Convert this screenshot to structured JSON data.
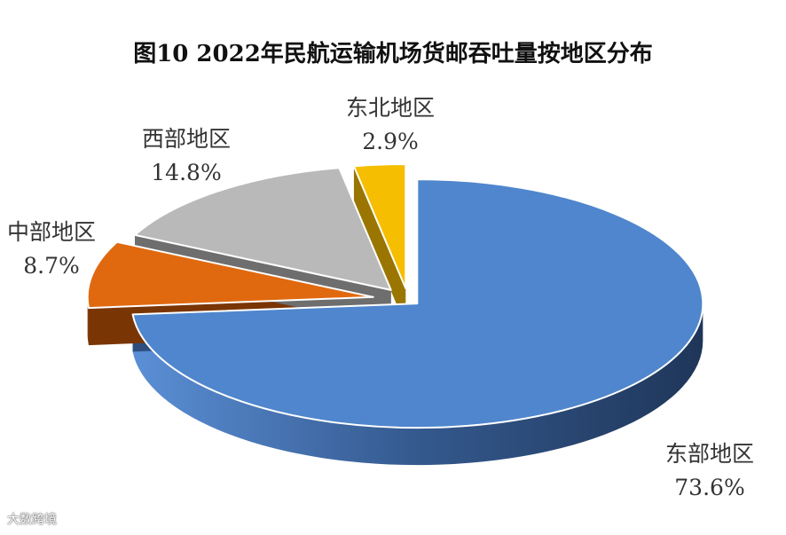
{
  "chart_data": {
    "type": "pie",
    "title": "图10 2022年民航运输机场货邮吞吐量按地区分布",
    "slices": [
      {
        "name": "东部地区",
        "value": 73.6,
        "label": "73.6%",
        "color": "#4f86cd",
        "side": "#2e4f7d"
      },
      {
        "name": "中部地区",
        "value": 8.7,
        "label": "8.7%",
        "color": "#e0690f",
        "side": "#7a3505"
      },
      {
        "name": "西部地区",
        "value": 14.8,
        "label": "14.8%",
        "color": "#b9b9b9",
        "side": "#6e6e6e"
      },
      {
        "name": "东北地区",
        "value": 2.9,
        "label": "2.9%",
        "color": "#f6be00",
        "side": "#9a7600"
      }
    ]
  },
  "watermark": "大数跨境"
}
